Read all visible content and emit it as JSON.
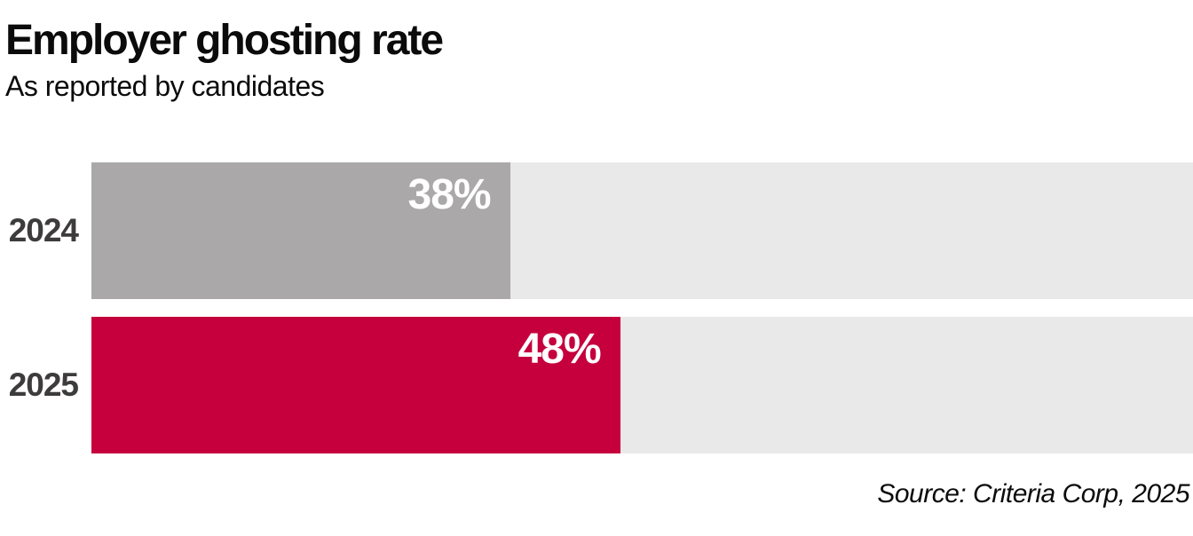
{
  "chart_data": {
    "type": "bar",
    "orientation": "horizontal",
    "title": "Employer ghosting rate",
    "subtitle": "As reported by candidates",
    "source": "Source: Criteria Corp, 2025",
    "categories": [
      "2024",
      "2025"
    ],
    "values": [
      38,
      48
    ],
    "value_labels": [
      "38%",
      "48%"
    ],
    "xlim": [
      0,
      100
    ],
    "bar_colors": [
      "#aaa8a8",
      "#c5003d"
    ],
    "legend": "none",
    "grid": false,
    "colors": {
      "track": "#e9e9e9",
      "year_label": "#3d3b3b",
      "value_label": "#ffffff",
      "title": "#0b0b0b",
      "background": "#ffffff"
    }
  }
}
